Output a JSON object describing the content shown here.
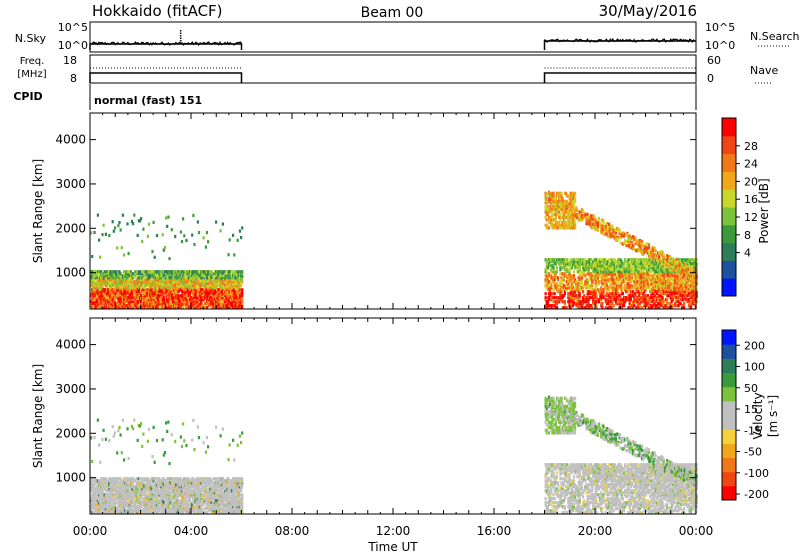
{
  "header": {
    "station": "Hokkaido (fitACF)",
    "beam": "Beam 00",
    "date": "30/May/2016"
  },
  "top_panels": {
    "nsky_label": "N.Sky",
    "nsearch_label": "N.Search",
    "nsky_ticks": [
      "10^5",
      "10^0"
    ],
    "nsearch_ticks": [
      "10^5",
      "10^0"
    ],
    "freq_label_1": "Freq.",
    "freq_label_2": "[MHz]",
    "freq_ticks": [
      "18",
      "8"
    ],
    "nave_label": "Nave",
    "nave_ticks": [
      "60",
      "0"
    ],
    "cpid_label": "CPID",
    "cpid_value": "normal (fast) 151"
  },
  "colors": {
    "power_scale": [
      "#0014ff",
      "#1e50a0",
      "#2e7d5a",
      "#3c9a3c",
      "#7cc23a",
      "#c8d72a",
      "#f0a81a",
      "#f07818",
      "#f04614",
      "#ff0000"
    ],
    "velocity_scale": [
      "#ff0000",
      "#f04614",
      "#f07818",
      "#f0a81a",
      "#f5d23c",
      "#c0c0c0",
      "#c0c0c0",
      "#7cc23a",
      "#3c9a3c",
      "#2e7d5a",
      "#1e50a0",
      "#0014ff"
    ]
  },
  "chart_data": [
    {
      "type": "heatmap",
      "name": "power",
      "ylabel": "Slant Range [km]",
      "y_ticks": [
        1000,
        2000,
        3000,
        4000
      ],
      "ylim": [
        180,
        4600
      ],
      "xlabel": "Time UT",
      "x_ticks": [
        "00:00",
        "04:00",
        "08:00",
        "12:00",
        "16:00",
        "20:00",
        "00:00"
      ],
      "xlim_hours": [
        0,
        24
      ],
      "colorbar_label": "Power [dB]",
      "colorbar_ticks": [
        "28",
        "24",
        "20",
        "16",
        "12",
        "8",
        "4"
      ],
      "data_coverage_hours": [
        [
          0,
          6
        ],
        [
          18,
          24
        ]
      ]
    },
    {
      "type": "heatmap",
      "name": "velocity",
      "ylabel": "Slant Range [km]",
      "y_ticks": [
        1000,
        2000,
        3000,
        4000
      ],
      "ylim": [
        180,
        4600
      ],
      "xlabel": "Time UT",
      "x_ticks": [
        "00:00",
        "04:00",
        "08:00",
        "12:00",
        "16:00",
        "20:00",
        "00:00"
      ],
      "xlim_hours": [
        0,
        24
      ],
      "colorbar_label_main": "Velocity",
      "colorbar_label_unit": "[m s⁻¹]",
      "colorbar_ticks": [
        "200",
        "100",
        "50",
        "15",
        "-15",
        "-50",
        "-100",
        "-200"
      ],
      "data_coverage_hours": [
        [
          0,
          6
        ],
        [
          18,
          24
        ]
      ]
    }
  ]
}
